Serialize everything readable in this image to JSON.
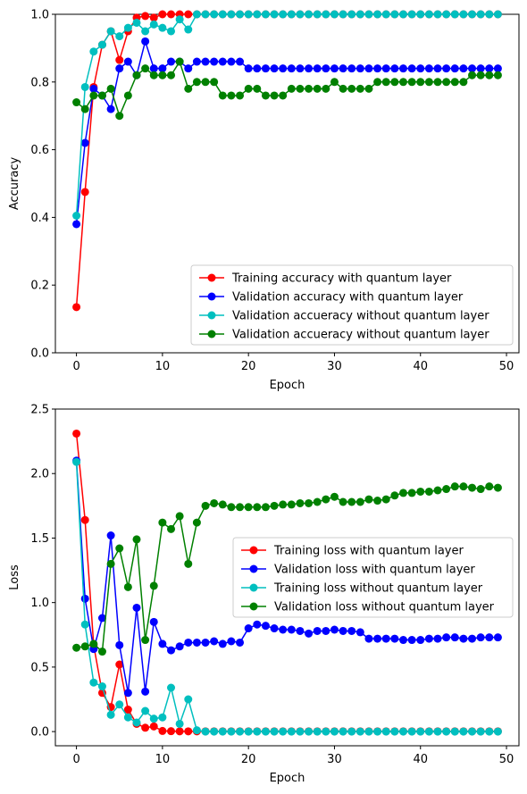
{
  "chart_data": [
    {
      "type": "line",
      "xlabel": "Epoch",
      "ylabel": "Accuracy",
      "xlim": [
        -2.45,
        51.45
      ],
      "ylim": [
        0.0,
        1.0
      ],
      "xticks": [
        0,
        10,
        20,
        30,
        40,
        50
      ],
      "xtick_labels": [
        "0",
        "10",
        "20",
        "30",
        "40",
        "50"
      ],
      "yticks": [
        0.0,
        0.2,
        0.4,
        0.6,
        0.8,
        1.0
      ],
      "ytick_labels": [
        "0.0",
        "0.2",
        "0.4",
        "0.6",
        "0.8",
        "1.0"
      ],
      "legend_position": "lower-right",
      "x": [
        0,
        1,
        2,
        3,
        4,
        5,
        6,
        7,
        8,
        9,
        10,
        11,
        12,
        13,
        14,
        15,
        16,
        17,
        18,
        19,
        20,
        21,
        22,
        23,
        24,
        25,
        26,
        27,
        28,
        29,
        30,
        31,
        32,
        33,
        34,
        35,
        36,
        37,
        38,
        39,
        40,
        41,
        42,
        43,
        44,
        45,
        46,
        47,
        48,
        49
      ],
      "series": [
        {
          "name": "Training accuracy with quantum layer",
          "color": "#ff0000",
          "values": [
            0.135,
            0.475,
            0.785,
            0.91,
            0.95,
            0.865,
            0.95,
            0.99,
            0.995,
            0.99,
            1.0,
            1.0,
            1.0,
            1.0,
            1.0,
            1.0,
            1.0,
            1.0,
            1.0,
            1.0,
            1.0,
            1.0,
            1.0,
            1.0,
            1.0,
            1.0,
            1.0,
            1.0,
            1.0,
            1.0,
            1.0,
            1.0,
            1.0,
            1.0,
            1.0,
            1.0,
            1.0,
            1.0,
            1.0,
            1.0,
            1.0,
            1.0,
            1.0,
            1.0,
            1.0,
            1.0,
            1.0,
            1.0,
            1.0,
            1.0
          ]
        },
        {
          "name": "Validation accuracy with quantum layer",
          "color": "#0000ff",
          "values": [
            0.38,
            0.62,
            0.78,
            0.76,
            0.72,
            0.84,
            0.86,
            0.82,
            0.92,
            0.84,
            0.84,
            0.86,
            0.86,
            0.84,
            0.86,
            0.86,
            0.86,
            0.86,
            0.86,
            0.86,
            0.84,
            0.84,
            0.84,
            0.84,
            0.84,
            0.84,
            0.84,
            0.84,
            0.84,
            0.84,
            0.84,
            0.84,
            0.84,
            0.84,
            0.84,
            0.84,
            0.84,
            0.84,
            0.84,
            0.84,
            0.84,
            0.84,
            0.84,
            0.84,
            0.84,
            0.84,
            0.84,
            0.84,
            0.84,
            0.84
          ]
        },
        {
          "name": "Validation accueracy without quantum layer",
          "color": "#00bfbf",
          "values": [
            0.405,
            0.785,
            0.89,
            0.91,
            0.95,
            0.935,
            0.96,
            0.975,
            0.95,
            0.97,
            0.96,
            0.95,
            0.985,
            0.955,
            1.0,
            1.0,
            1.0,
            1.0,
            1.0,
            1.0,
            1.0,
            1.0,
            1.0,
            1.0,
            1.0,
            1.0,
            1.0,
            1.0,
            1.0,
            1.0,
            1.0,
            1.0,
            1.0,
            1.0,
            1.0,
            1.0,
            1.0,
            1.0,
            1.0,
            1.0,
            1.0,
            1.0,
            1.0,
            1.0,
            1.0,
            1.0,
            1.0,
            1.0,
            1.0,
            1.0
          ]
        },
        {
          "name": "Validation accueracy without quantum layer",
          "color": "#008000",
          "values": [
            0.74,
            0.72,
            0.76,
            0.76,
            0.78,
            0.7,
            0.76,
            0.82,
            0.84,
            0.82,
            0.82,
            0.82,
            0.86,
            0.78,
            0.8,
            0.8,
            0.8,
            0.76,
            0.76,
            0.76,
            0.78,
            0.78,
            0.76,
            0.76,
            0.76,
            0.78,
            0.78,
            0.78,
            0.78,
            0.78,
            0.8,
            0.78,
            0.78,
            0.78,
            0.78,
            0.8,
            0.8,
            0.8,
            0.8,
            0.8,
            0.8,
            0.8,
            0.8,
            0.8,
            0.8,
            0.8,
            0.82,
            0.82,
            0.82,
            0.82
          ]
        }
      ]
    },
    {
      "type": "line",
      "xlabel": "Epoch",
      "ylabel": "Loss",
      "xlim": [
        -2.45,
        51.45
      ],
      "ylim": [
        -0.11,
        2.5
      ],
      "xticks": [
        0,
        10,
        20,
        30,
        40,
        50
      ],
      "xtick_labels": [
        "0",
        "10",
        "20",
        "30",
        "40",
        "50"
      ],
      "yticks": [
        0.0,
        0.5,
        1.0,
        1.5,
        2.0,
        2.5
      ],
      "ytick_labels": [
        "0.0",
        "0.5",
        "1.0",
        "1.5",
        "2.0",
        "2.5"
      ],
      "legend_position": "center-right",
      "x": [
        0,
        1,
        2,
        3,
        4,
        5,
        6,
        7,
        8,
        9,
        10,
        11,
        12,
        13,
        14,
        15,
        16,
        17,
        18,
        19,
        20,
        21,
        22,
        23,
        24,
        25,
        26,
        27,
        28,
        29,
        30,
        31,
        32,
        33,
        34,
        35,
        36,
        37,
        38,
        39,
        40,
        41,
        42,
        43,
        44,
        45,
        46,
        47,
        48,
        49
      ],
      "series": [
        {
          "name": "Training loss with quantum layer",
          "color": "#ff0000",
          "values": [
            2.31,
            1.64,
            0.67,
            0.3,
            0.19,
            0.52,
            0.17,
            0.06,
            0.03,
            0.04,
            0.005,
            0.003,
            0.002,
            0.002,
            0.002,
            0.002,
            0.002,
            0.002,
            0.002,
            0.002,
            0.002,
            0.002,
            0.002,
            0.002,
            0.002,
            0.002,
            0.002,
            0.002,
            0.002,
            0.002,
            0.002,
            0.002,
            0.002,
            0.002,
            0.002,
            0.002,
            0.002,
            0.002,
            0.002,
            0.002,
            0.002,
            0.002,
            0.002,
            0.002,
            0.002,
            0.002,
            0.002,
            0.002,
            0.002,
            0.002
          ]
        },
        {
          "name": "Validation loss with quantum layer",
          "color": "#0000ff",
          "values": [
            2.1,
            1.03,
            0.64,
            0.88,
            1.52,
            0.67,
            0.3,
            0.96,
            0.31,
            0.85,
            0.68,
            0.63,
            0.66,
            0.69,
            0.69,
            0.69,
            0.7,
            0.68,
            0.7,
            0.69,
            0.8,
            0.83,
            0.82,
            0.8,
            0.79,
            0.79,
            0.78,
            0.76,
            0.78,
            0.78,
            0.79,
            0.78,
            0.78,
            0.77,
            0.72,
            0.72,
            0.72,
            0.72,
            0.71,
            0.71,
            0.71,
            0.72,
            0.72,
            0.73,
            0.73,
            0.72,
            0.72,
            0.73,
            0.73,
            0.73
          ]
        },
        {
          "name": "Training loss without quantum layer",
          "color": "#00bfbf",
          "values": [
            2.09,
            0.83,
            0.38,
            0.35,
            0.13,
            0.21,
            0.11,
            0.07,
            0.16,
            0.1,
            0.11,
            0.34,
            0.06,
            0.25,
            0.01,
            0.0,
            0.0,
            0.0,
            0.0,
            0.0,
            0.0,
            0.0,
            0.0,
            0.0,
            0.0,
            0.0,
            0.0,
            0.0,
            0.0,
            0.0,
            0.0,
            0.0,
            0.0,
            0.0,
            0.0,
            0.0,
            0.0,
            0.0,
            0.0,
            0.0,
            0.0,
            0.0,
            0.0,
            0.0,
            0.0,
            0.0,
            0.0,
            0.0,
            0.0,
            0.0
          ]
        },
        {
          "name": "Validation loss without quantum layer",
          "color": "#008000",
          "values": [
            0.65,
            0.66,
            0.68,
            0.62,
            1.3,
            1.42,
            1.12,
            1.49,
            0.71,
            1.13,
            1.62,
            1.57,
            1.67,
            1.3,
            1.62,
            1.75,
            1.77,
            1.76,
            1.74,
            1.74,
            1.74,
            1.74,
            1.74,
            1.75,
            1.76,
            1.76,
            1.77,
            1.77,
            1.78,
            1.8,
            1.82,
            1.78,
            1.78,
            1.78,
            1.8,
            1.79,
            1.8,
            1.83,
            1.85,
            1.85,
            1.86,
            1.86,
            1.87,
            1.88,
            1.9,
            1.9,
            1.89,
            1.88,
            1.9,
            1.89
          ]
        }
      ]
    }
  ]
}
